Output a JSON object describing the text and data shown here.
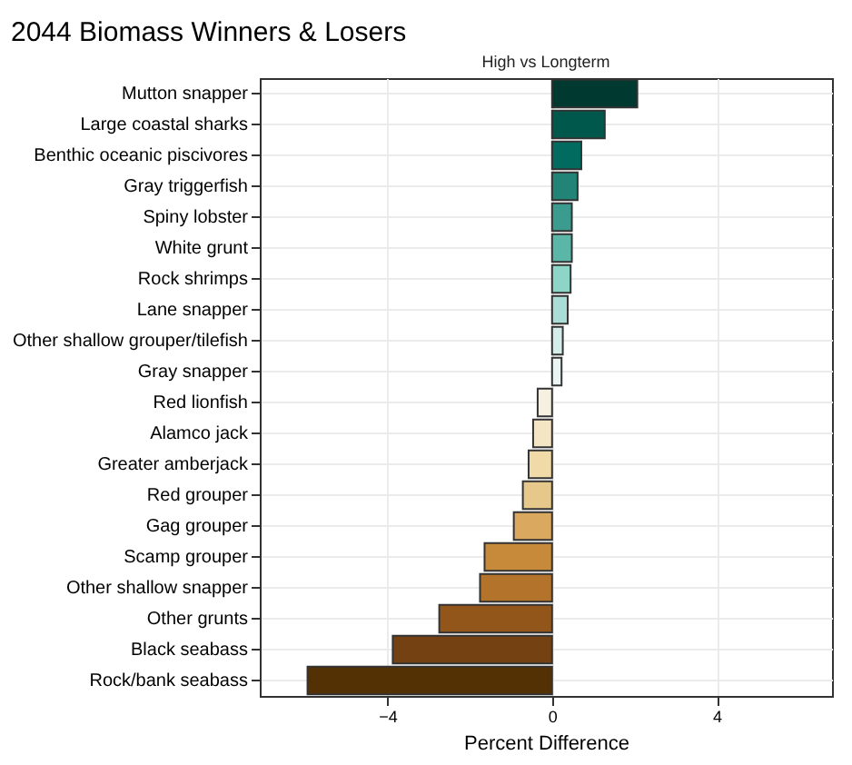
{
  "chart_data": {
    "type": "bar",
    "orientation": "horizontal",
    "title": "2044 Biomass Winners & Losers",
    "subtitle": "High vs Longterm",
    "xlabel": "Percent Difference",
    "categories": [
      "Mutton snapper",
      "Large coastal sharks",
      "Benthic oceanic piscivores",
      "Gray triggerfish",
      "Spiny lobster",
      "White grunt",
      "Rock shrimps",
      "Lane snapper",
      "Other shallow grouper/tilefish",
      "Gray snapper",
      "Red lionfish",
      "Alamco jack",
      "Greater amberjack",
      "Red grouper",
      "Gag grouper",
      "Scamp grouper",
      "Other shallow snapper",
      "Other grunts",
      "Black seabass",
      "Rock/bank seabass"
    ],
    "values": [
      2.07,
      1.28,
      0.71,
      0.62,
      0.48,
      0.48,
      0.45,
      0.38,
      0.26,
      0.23,
      -0.35,
      -0.46,
      -0.57,
      -0.71,
      -0.93,
      -1.64,
      -1.75,
      -2.74,
      -3.87,
      -5.94
    ],
    "colors": [
      "#00392f",
      "#00584c",
      "#016b60",
      "#228477",
      "#3a9b8e",
      "#5ab7a8",
      "#8dd5c7",
      "#a9ddd5",
      "#d3ede9",
      "#eaf5f3",
      "#f5f0e0",
      "#f4e6c4",
      "#efdaa8",
      "#e6c98a",
      "#daa85e",
      "#c68a3a",
      "#b4732a",
      "#93561a",
      "#744212",
      "#543005"
    ],
    "xlim": [
      -7.1,
      6.8
    ],
    "xticks": [
      -4,
      0,
      4
    ],
    "grid": true
  }
}
